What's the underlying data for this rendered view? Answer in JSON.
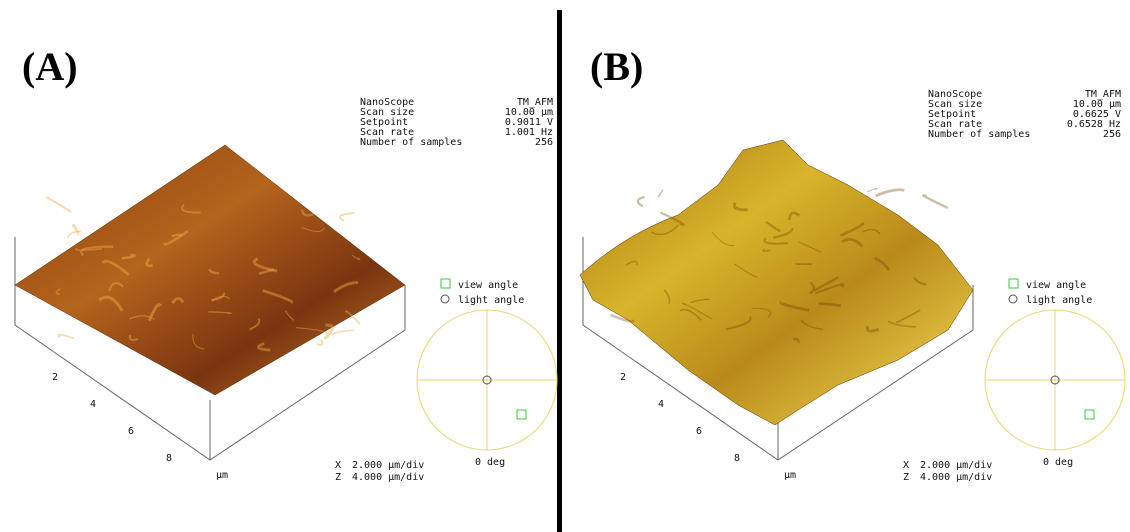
{
  "panels": [
    {
      "label": "(A)",
      "info": [
        [
          "NanoScope",
          "TM_AFM"
        ],
        [
          "Scan size",
          "10.00 µm"
        ],
        [
          "Setpoint",
          "0.9011 V"
        ],
        [
          "Scan rate",
          "1.001 Hz"
        ],
        [
          "Number of samples",
          "256"
        ]
      ],
      "axis_ticks": [
        "2",
        "4",
        "6",
        "8"
      ],
      "axis_unit": "µm",
      "scale": [
        [
          "X",
          "2.000 µm/div"
        ],
        [
          "Z",
          "4.000 µm/div"
        ]
      ],
      "legend": [
        "view angle",
        "light angle"
      ],
      "angle": "0 deg"
    },
    {
      "label": "(B)",
      "info": [
        [
          "NanoScope",
          "TM_AFM"
        ],
        [
          "Scan size",
          "10.00 µm"
        ],
        [
          "Setpoint",
          "0.6625 V"
        ],
        [
          "Scan rate",
          "0.6528 Hz"
        ],
        [
          "Number of samples",
          "256"
        ]
      ],
      "axis_ticks": [
        "2",
        "4",
        "6",
        "8"
      ],
      "axis_unit": "µm",
      "scale": [
        [
          "X",
          "2.000 µm/div"
        ],
        [
          "Z",
          "4.000 µm/div"
        ]
      ],
      "legend": [
        "view angle",
        "light angle"
      ],
      "angle": "0 deg"
    }
  ]
}
